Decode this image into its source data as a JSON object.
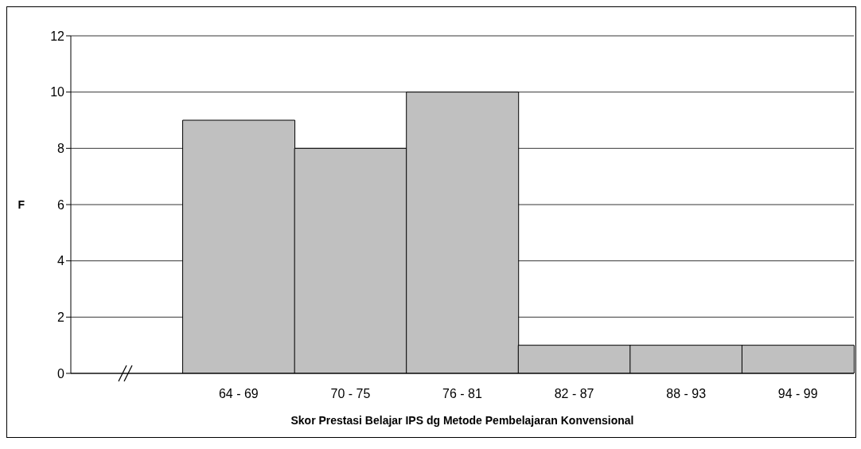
{
  "chart_data": {
    "type": "bar",
    "xlabel": "Skor Prestasi Belajar IPS dg Metode Pembelajaran Konvensional",
    "ylabel": "F",
    "categories": [
      null,
      "64 - 69",
      "70 - 75",
      "76 - 81",
      "82 - 87",
      "88 - 93",
      "94 - 99"
    ],
    "values": [
      null,
      9,
      8,
      10,
      1,
      1,
      1
    ],
    "color": "#c0c0c0",
    "ylim": [
      0,
      12
    ],
    "yticks": [
      0,
      2,
      4,
      6,
      8,
      10,
      12
    ],
    "grid": "y"
  }
}
